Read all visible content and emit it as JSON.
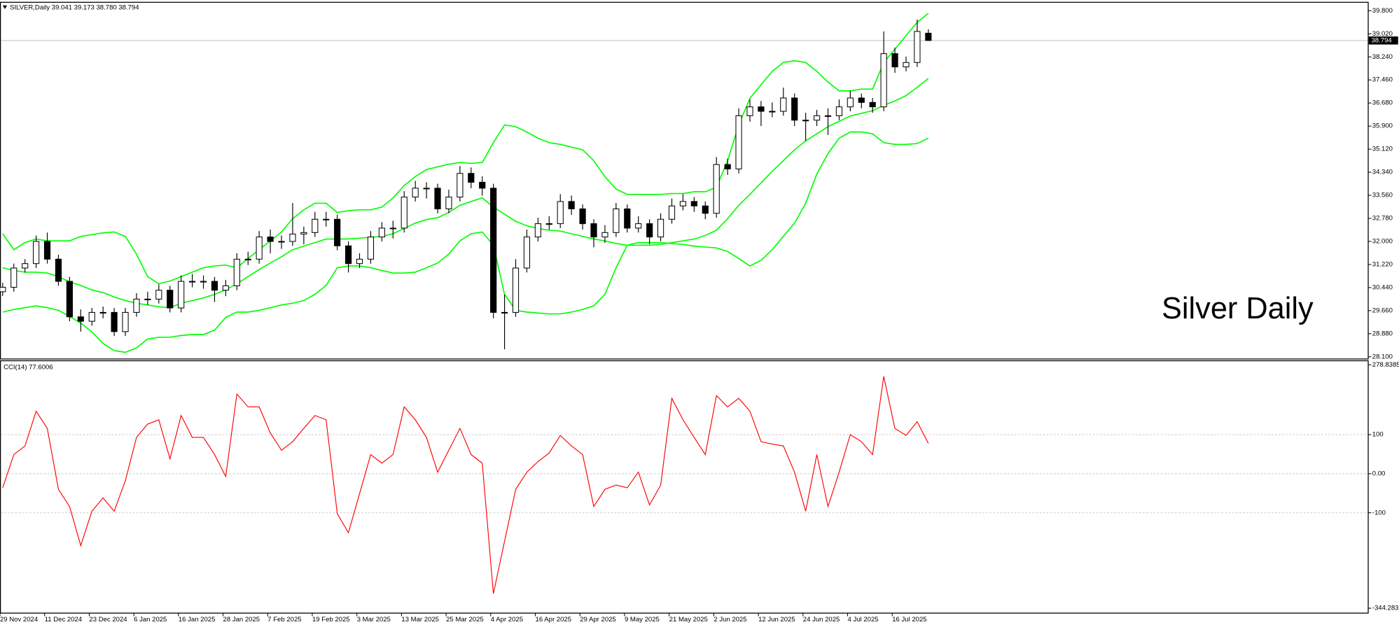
{
  "chart_data": [
    {
      "type": "candlestick",
      "title": "SILVER,Daily  39.041 39.173 38.780 38.794",
      "annotation": "Silver Daily",
      "categories": [
        "29 Nov 2024",
        null,
        null,
        null,
        "11 Dec 2024",
        null,
        null,
        null,
        "23 Dec 2024",
        null,
        null,
        null,
        "6 Jan 2025",
        null,
        null,
        null,
        "16 Jan 2025",
        null,
        null,
        null,
        "28 Jan 2025",
        null,
        null,
        null,
        "7 Feb 2025",
        null,
        null,
        null,
        "19 Feb 2025",
        null,
        null,
        null,
        "3 Mar 2025",
        null,
        null,
        null,
        "13 Mar 2025",
        null,
        null,
        null,
        "25 Mar 2025",
        null,
        null,
        null,
        "4 Apr 2025",
        null,
        null,
        null,
        "16 Apr 2025",
        null,
        null,
        null,
        "29 Apr 2025",
        null,
        null,
        null,
        "9 May 2025",
        null,
        null,
        null,
        "21 May 2025",
        null,
        null,
        null,
        "2 Jun 2025",
        null,
        null,
        null,
        "12 Jun 2025",
        null,
        null,
        null,
        "24 Jun 2025",
        null,
        null,
        null,
        "4 Jul 2025",
        null,
        null,
        null,
        "16 Jul 2025",
        null,
        null,
        null
      ],
      "values": [
        [
          30.3,
          30.6,
          30.15,
          30.45
        ],
        [
          30.45,
          31.25,
          30.3,
          31.1
        ],
        [
          31.1,
          31.4,
          30.95,
          31.25
        ],
        [
          31.25,
          32.2,
          31.1,
          32.0
        ],
        [
          32.0,
          32.3,
          31.25,
          31.4
        ],
        [
          31.4,
          31.55,
          30.5,
          30.65
        ],
        [
          30.65,
          30.8,
          29.3,
          29.45
        ],
        [
          29.45,
          29.7,
          28.95,
          29.3
        ],
        [
          29.3,
          29.75,
          29.15,
          29.6
        ],
        [
          29.6,
          29.8,
          29.4,
          29.6
        ],
        [
          29.6,
          29.75,
          28.8,
          28.95
        ],
        [
          28.95,
          29.75,
          28.8,
          29.6
        ],
        [
          29.6,
          30.25,
          29.45,
          30.05
        ],
        [
          30.05,
          30.3,
          29.85,
          30.05
        ],
        [
          30.05,
          30.55,
          29.9,
          30.35
        ],
        [
          30.35,
          30.5,
          29.6,
          29.75
        ],
        [
          29.75,
          30.85,
          29.6,
          30.65
        ],
        [
          30.65,
          30.9,
          30.45,
          30.65
        ],
        [
          30.65,
          30.85,
          30.4,
          30.65
        ],
        [
          30.65,
          30.8,
          29.95,
          30.35
        ],
        [
          30.35,
          30.7,
          30.15,
          30.5
        ],
        [
          30.5,
          31.6,
          30.35,
          31.4
        ],
        [
          31.4,
          31.65,
          31.2,
          31.4
        ],
        [
          31.4,
          32.35,
          31.25,
          32.15
        ],
        [
          32.15,
          32.4,
          31.6,
          32.0
        ],
        [
          32.0,
          32.2,
          31.75,
          32.0
        ],
        [
          32.0,
          33.3,
          31.85,
          32.25
        ],
        [
          32.25,
          32.5,
          31.9,
          32.3
        ],
        [
          32.3,
          33.0,
          32.15,
          32.75
        ],
        [
          32.75,
          33.0,
          32.5,
          32.75
        ],
        [
          32.75,
          32.9,
          31.7,
          31.85
        ],
        [
          31.85,
          32.0,
          30.95,
          31.25
        ],
        [
          31.25,
          31.6,
          31.1,
          31.4
        ],
        [
          31.4,
          32.35,
          31.25,
          32.15
        ],
        [
          32.15,
          32.65,
          32.0,
          32.45
        ],
        [
          32.45,
          32.7,
          32.1,
          32.45
        ],
        [
          32.45,
          33.7,
          32.3,
          33.5
        ],
        [
          33.5,
          34.05,
          33.35,
          33.8
        ],
        [
          33.8,
          34.0,
          33.45,
          33.8
        ],
        [
          33.8,
          33.95,
          32.95,
          33.1
        ],
        [
          33.1,
          33.75,
          32.95,
          33.5
        ],
        [
          33.5,
          34.55,
          33.35,
          34.3
        ],
        [
          34.3,
          34.5,
          33.8,
          34.0
        ],
        [
          34.0,
          34.2,
          33.55,
          33.8
        ],
        [
          33.8,
          33.95,
          29.4,
          29.6
        ],
        [
          29.6,
          30.2,
          28.35,
          29.6
        ],
        [
          29.6,
          31.4,
          29.45,
          31.1
        ],
        [
          31.1,
          32.4,
          30.95,
          32.15
        ],
        [
          32.15,
          32.8,
          32.0,
          32.6
        ],
        [
          32.6,
          32.85,
          32.4,
          32.6
        ],
        [
          32.6,
          33.6,
          32.45,
          33.35
        ],
        [
          33.35,
          33.55,
          32.9,
          33.1
        ],
        [
          33.1,
          33.25,
          32.4,
          32.6
        ],
        [
          32.6,
          32.75,
          31.8,
          32.15
        ],
        [
          32.15,
          32.55,
          31.95,
          32.3
        ],
        [
          32.3,
          33.3,
          32.15,
          33.1
        ],
        [
          33.1,
          33.25,
          32.3,
          32.45
        ],
        [
          32.45,
          32.85,
          32.3,
          32.6
        ],
        [
          32.6,
          32.75,
          31.9,
          32.15
        ],
        [
          32.15,
          32.95,
          32.0,
          32.75
        ],
        [
          32.75,
          33.45,
          32.6,
          33.2
        ],
        [
          33.2,
          33.6,
          33.05,
          33.35
        ],
        [
          33.35,
          33.5,
          33.0,
          33.2
        ],
        [
          33.2,
          33.35,
          32.75,
          32.95
        ],
        [
          32.95,
          34.85,
          32.8,
          34.6
        ],
        [
          34.6,
          34.8,
          34.25,
          34.45
        ],
        [
          34.45,
          36.5,
          34.3,
          36.25
        ],
        [
          36.25,
          36.8,
          36.05,
          36.55
        ],
        [
          36.55,
          36.75,
          35.9,
          36.4
        ],
        [
          36.4,
          36.7,
          36.2,
          36.4
        ],
        [
          36.4,
          37.2,
          36.25,
          36.85
        ],
        [
          36.85,
          37.0,
          35.9,
          36.1
        ],
        [
          36.1,
          36.35,
          35.4,
          36.1
        ],
        [
          36.1,
          36.45,
          35.9,
          36.25
        ],
        [
          36.25,
          36.5,
          35.6,
          36.25
        ],
        [
          36.25,
          36.8,
          36.1,
          36.55
        ],
        [
          36.55,
          37.1,
          36.4,
          36.85
        ],
        [
          36.85,
          37.0,
          36.5,
          36.7
        ],
        [
          36.7,
          36.85,
          36.35,
          36.55
        ],
        [
          36.55,
          39.1,
          36.4,
          38.35
        ],
        [
          38.35,
          38.55,
          37.7,
          37.9
        ],
        [
          37.9,
          38.25,
          37.75,
          38.05
        ],
        [
          38.05,
          39.5,
          37.9,
          39.1
        ],
        [
          39.041,
          39.173,
          38.78,
          38.794
        ]
      ],
      "up_color": "#ffffff",
      "down_color": "#000000",
      "bands": {
        "color": "#00ff00",
        "upper": [
          32.26,
          31.72,
          31.96,
          32.08,
          32.02,
          32.02,
          32.02,
          32.17,
          32.23,
          32.29,
          32.32,
          32.17,
          31.57,
          30.81,
          30.57,
          30.66,
          30.81,
          30.96,
          31.11,
          31.17,
          31.2,
          31.11,
          31.42,
          31.72,
          32.02,
          32.32,
          32.77,
          33.07,
          33.29,
          33.29,
          32.98,
          33.04,
          33.07,
          33.07,
          33.16,
          33.47,
          33.89,
          34.19,
          34.43,
          34.52,
          34.61,
          34.67,
          34.64,
          34.67,
          35.34,
          35.94,
          35.88,
          35.7,
          35.49,
          35.34,
          35.28,
          35.19,
          35.1,
          34.73,
          34.19,
          33.77,
          33.59,
          33.59,
          33.59,
          33.59,
          33.62,
          33.62,
          33.68,
          33.68,
          33.83,
          34.73,
          35.94,
          36.84,
          37.3,
          37.75,
          38.05,
          38.11,
          38.05,
          37.75,
          37.39,
          37.09,
          37.09,
          37.15,
          37.15,
          38.05,
          38.5,
          38.96,
          39.41,
          39.71
        ],
        "middle": [
          31.11,
          31.02,
          30.96,
          30.96,
          30.93,
          30.81,
          30.63,
          30.51,
          30.36,
          30.27,
          30.12,
          30.0,
          29.91,
          29.85,
          29.79,
          29.76,
          29.91,
          30.0,
          30.09,
          30.21,
          30.36,
          30.57,
          30.81,
          31.05,
          31.27,
          31.48,
          31.72,
          31.84,
          31.96,
          32.08,
          32.08,
          32.08,
          32.11,
          32.14,
          32.17,
          32.26,
          32.44,
          32.62,
          32.74,
          32.8,
          32.98,
          33.22,
          33.35,
          33.47,
          33.16,
          32.92,
          32.68,
          32.53,
          32.44,
          32.38,
          32.35,
          32.26,
          32.17,
          32.08,
          32.02,
          31.93,
          31.87,
          31.87,
          31.87,
          31.9,
          31.96,
          32.02,
          32.08,
          32.2,
          32.38,
          32.77,
          33.22,
          33.59,
          33.98,
          34.37,
          34.73,
          35.1,
          35.4,
          35.64,
          35.88,
          36.06,
          36.24,
          36.33,
          36.42,
          36.6,
          36.75,
          36.93,
          37.21,
          37.51
        ],
        "lower": [
          29.61,
          29.7,
          29.76,
          29.82,
          29.76,
          29.67,
          29.46,
          29.24,
          28.94,
          28.55,
          28.31,
          28.25,
          28.4,
          28.7,
          28.76,
          28.76,
          28.82,
          28.85,
          28.85,
          29.0,
          29.43,
          29.61,
          29.61,
          29.67,
          29.76,
          29.85,
          29.91,
          30.0,
          30.21,
          30.51,
          31.11,
          31.17,
          31.17,
          31.11,
          31.02,
          30.93,
          30.93,
          30.96,
          31.11,
          31.27,
          31.57,
          32.02,
          32.26,
          32.32,
          31.87,
          30.21,
          29.67,
          29.61,
          29.58,
          29.55,
          29.55,
          29.61,
          29.7,
          29.82,
          30.21,
          31.11,
          31.87,
          31.96,
          31.96,
          31.96,
          31.93,
          31.9,
          31.84,
          31.81,
          31.78,
          31.66,
          31.42,
          31.17,
          31.36,
          31.72,
          32.17,
          32.62,
          33.29,
          34.28,
          34.97,
          35.49,
          35.7,
          35.7,
          35.64,
          35.34,
          35.28,
          35.28,
          35.31,
          35.49
        ]
      },
      "last_price": 38.794,
      "ylim": [
        28.04,
        40.07
      ],
      "yticks": [
        {
          "value": 28.1,
          "label": "28.100"
        },
        {
          "value": 28.88,
          "label": "28.880"
        },
        {
          "value": 29.66,
          "label": "29.660"
        },
        {
          "value": 30.44,
          "label": "30.440"
        },
        {
          "value": 31.22,
          "label": "31.220"
        },
        {
          "value": 32,
          "label": "32.000"
        },
        {
          "value": 32.78,
          "label": "32.780"
        },
        {
          "value": 33.56,
          "label": "33.560"
        },
        {
          "value": 34.34,
          "label": "34.340"
        },
        {
          "value": 35.12,
          "label": "35.120"
        },
        {
          "value": 35.9,
          "label": "35.900"
        },
        {
          "value": 36.68,
          "label": "36.680"
        },
        {
          "value": 37.46,
          "label": "37.460"
        },
        {
          "value": 38.24,
          "label": "38.240"
        },
        {
          "value": 39.02,
          "label": "39.020"
        },
        {
          "value": 39.8,
          "label": "39.800"
        }
      ]
    },
    {
      "type": "line",
      "title": "CCI(14) 77.6006",
      "color": "#ff0000",
      "values": [
        -36,
        49,
        71,
        160,
        116,
        -40,
        -84,
        -184,
        -96,
        -62,
        -96,
        -18,
        93,
        127,
        138,
        38,
        149,
        93,
        93,
        49,
        -7,
        204,
        171,
        171,
        104,
        60,
        82,
        116,
        149,
        138,
        -102,
        -151,
        -51,
        49,
        27,
        49,
        171,
        138,
        93,
        4,
        60,
        116,
        49,
        27,
        -307,
        -173,
        -40,
        4,
        31,
        53,
        98,
        71,
        49,
        -84,
        -40,
        -29,
        -36,
        4,
        -80,
        -29,
        193,
        138,
        93,
        49,
        200,
        171,
        193,
        160,
        82,
        76,
        71,
        4,
        -96,
        49,
        -84,
        4,
        100,
        82,
        49,
        249,
        116,
        98,
        133,
        77.6006
      ],
      "ylim": [
        -344.283,
        278.8385
      ],
      "yticks": [
        278.8385,
        100,
        {
          "value": 0,
          "label": "0.00"
        },
        -100,
        -344.283
      ]
    }
  ]
}
